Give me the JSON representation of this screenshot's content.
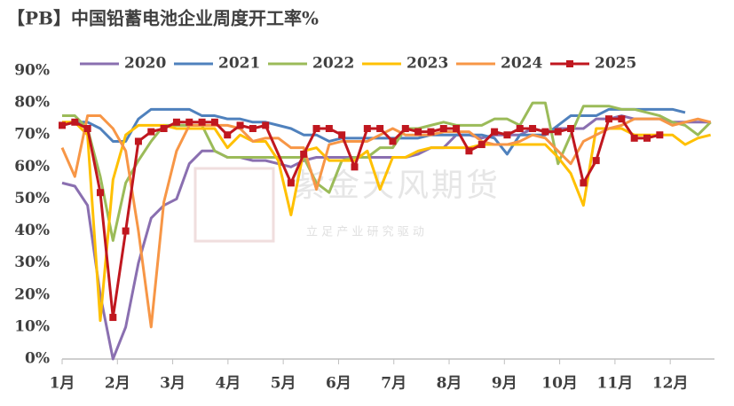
{
  "chart_data": {
    "type": "line",
    "title": "【PB】中国铅蓄电池企业周度开工率%",
    "watermark": "紫金天风期货",
    "watermark_sub": "立 足 产 业 研 究 驱 动",
    "x": [
      1,
      1.23,
      1.46,
      1.69,
      1.92,
      2.15,
      2.38,
      2.61,
      2.84,
      3.07,
      3.3,
      3.53,
      3.76,
      3.99,
      4.22,
      4.45,
      4.68,
      4.91,
      5.14,
      5.37,
      5.6,
      5.83,
      6.06,
      6.29,
      6.52,
      6.75,
      6.98,
      7.21,
      7.44,
      7.67,
      7.9,
      8.13,
      8.36,
      8.59,
      8.82,
      9.05,
      9.28,
      9.51,
      9.74,
      9.97,
      10.2,
      10.43,
      10.66,
      10.89,
      11.12,
      11.35,
      11.58,
      11.81,
      12.04,
      12.27,
      12.5,
      12.73
    ],
    "xlim": [
      1,
      12.8
    ],
    "xticks": [
      {
        "value": 1,
        "label": "1月"
      },
      {
        "value": 2,
        "label": "2月"
      },
      {
        "value": 3,
        "label": "3月"
      },
      {
        "value": 4,
        "label": "4月"
      },
      {
        "value": 5,
        "label": "5月"
      },
      {
        "value": 6,
        "label": "6月"
      },
      {
        "value": 7,
        "label": "7月"
      },
      {
        "value": 8,
        "label": "8月"
      },
      {
        "value": 9,
        "label": "9月"
      },
      {
        "value": 10,
        "label": "10月"
      },
      {
        "value": 11,
        "label": "11月"
      },
      {
        "value": 12,
        "label": "12月"
      }
    ],
    "ylim": [
      0,
      90
    ],
    "yticks": [
      {
        "value": 0,
        "label": "0%"
      },
      {
        "value": 10,
        "label": "10%"
      },
      {
        "value": 20,
        "label": "20%"
      },
      {
        "value": 30,
        "label": "30%"
      },
      {
        "value": 40,
        "label": "40%"
      },
      {
        "value": 50,
        "label": "50%"
      },
      {
        "value": 60,
        "label": "60%"
      },
      {
        "value": 70,
        "label": "70%"
      },
      {
        "value": 80,
        "label": "80%"
      },
      {
        "value": 90,
        "label": "90%"
      }
    ],
    "grid": false,
    "legend": "top",
    "series": [
      {
        "name": "2020",
        "color": "#8a6fb0",
        "values": [
          55,
          54,
          48,
          20,
          0,
          10,
          30,
          44,
          48,
          50,
          61,
          65,
          65,
          63,
          63,
          62,
          62,
          61,
          60,
          62,
          63,
          63,
          63,
          63,
          63,
          63,
          63,
          63,
          64,
          66,
          66,
          70,
          70,
          69,
          70,
          70,
          70,
          72,
          71,
          72,
          72,
          72,
          75,
          75,
          76,
          75,
          75,
          75,
          74,
          74,
          74,
          74
        ]
      },
      {
        "name": "2021",
        "color": "#4f81bd",
        "values": [
          73,
          74,
          74,
          72,
          68,
          68,
          75,
          78,
          78,
          78,
          78,
          76,
          76,
          75,
          75,
          74,
          74,
          73,
          72,
          70,
          70,
          68,
          69,
          69,
          69,
          69,
          69,
          69,
          69,
          70,
          70,
          70,
          70,
          70,
          69,
          64,
          70,
          70,
          70,
          73,
          76,
          76,
          76,
          78,
          78,
          78,
          78,
          78,
          78,
          77,
          null,
          null
        ]
      },
      {
        "name": "2022",
        "color": "#9bbb59",
        "values": [
          76,
          76,
          72,
          57,
          37,
          55,
          62,
          68,
          73,
          73,
          73,
          73,
          65,
          63,
          63,
          63,
          63,
          63,
          63,
          63,
          55,
          52,
          62,
          63,
          63,
          66,
          66,
          72,
          72,
          73,
          74,
          73,
          73,
          73,
          75,
          75,
          73,
          80,
          80,
          61,
          70,
          79,
          79,
          79,
          78,
          78,
          77,
          76,
          74,
          73,
          70,
          74
        ]
      },
      {
        "name": "2023",
        "color": "#ffc000",
        "values": [
          74,
          74,
          70,
          12,
          56,
          70,
          73,
          73,
          73,
          72,
          72,
          72,
          72,
          66,
          70,
          68,
          68,
          62,
          45,
          65,
          66,
          62,
          62,
          62,
          65,
          53,
          63,
          63,
          65,
          66,
          66,
          66,
          66,
          67,
          67,
          67,
          67,
          67,
          67,
          63,
          58,
          48,
          72,
          72,
          72,
          70,
          70,
          70,
          70,
          67,
          69,
          70
        ]
      },
      {
        "name": "2024",
        "color": "#f79646",
        "values": [
          66,
          57,
          76,
          76,
          72,
          65,
          40,
          10,
          49,
          65,
          73,
          73,
          73,
          73,
          72,
          68,
          69,
          69,
          66,
          66,
          53,
          67,
          68,
          68,
          68,
          70,
          72,
          70,
          70,
          70,
          71,
          71,
          71,
          68,
          67,
          67,
          68,
          70,
          69,
          65,
          61,
          68,
          70,
          72,
          73,
          75,
          75,
          75,
          73,
          74,
          75,
          74
        ]
      },
      {
        "name": "2025",
        "color": "#c0171f",
        "marker": "square",
        "x": [
          1,
          1.23,
          1.46,
          1.69,
          1.92,
          2.15,
          2.38,
          2.61,
          2.84,
          3.07,
          3.3,
          3.53,
          3.76,
          3.99,
          4.22,
          4.45,
          4.68,
          5.14,
          5.37,
          5.6,
          5.83,
          6.06,
          6.29,
          6.52,
          6.75,
          6.98,
          7.21,
          7.44,
          7.67,
          7.9,
          8.13,
          8.36,
          8.59,
          8.82,
          9.05,
          9.28,
          9.51,
          9.74,
          9.97,
          10.2,
          10.43,
          10.66,
          10.89,
          11.12,
          11.35,
          11.58,
          11.81
        ],
        "values": [
          73,
          74,
          72,
          52,
          13,
          40,
          68,
          71,
          72,
          74,
          74,
          74,
          74,
          70,
          73,
          72,
          73,
          55,
          64,
          72,
          72,
          70,
          60,
          72,
          72,
          68,
          72,
          71,
          71,
          72,
          72,
          65,
          67,
          71,
          70,
          72,
          72,
          71,
          71,
          72,
          55,
          62,
          75,
          75,
          69,
          69,
          70
        ]
      }
    ]
  }
}
